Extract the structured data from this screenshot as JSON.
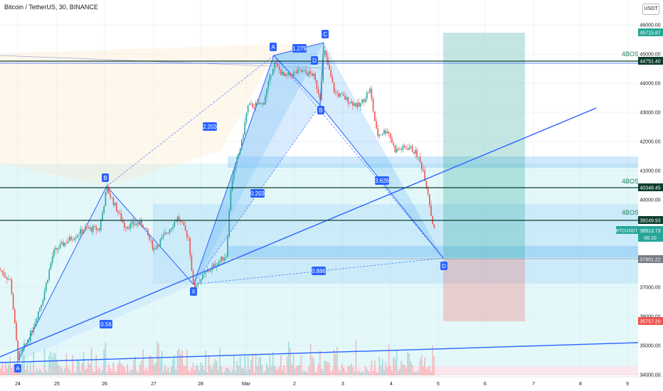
{
  "header": {
    "title": "Bitcoin / TetherUS, 30, BINANCE",
    "currency": "USDT"
  },
  "price_axis": {
    "ticks": [
      "46000.00",
      "45000.00",
      "44000.00",
      "43000.00",
      "42000.00",
      "41000.00",
      "40000.00",
      "39000.00",
      "38000.00",
      "37000.00",
      "36000.00",
      "35000.00",
      "34000.00"
    ],
    "labels": {
      "target": "45715.87",
      "bos_top": "44751.40",
      "bos_mid": "40348.45",
      "bos_low": "39249.93",
      "symbol": "BTCUSDT",
      "last": "38913.73",
      "countdown": "06:10",
      "entry": "37901.22",
      "stop": "35757.20"
    }
  },
  "time_axis": {
    "ticks": [
      "24",
      "25",
      "26",
      "27",
      "28",
      "Mar",
      "2",
      "3",
      "4",
      "5",
      "6",
      "7",
      "8",
      "9"
    ]
  },
  "drawings": {
    "bos_label": "4BOS",
    "pattern1_points": [
      "A",
      "B",
      "X"
    ],
    "pattern1_ratios": [
      "2.203",
      "0.203",
      "0.56"
    ],
    "pattern2_points": [
      "A",
      "C",
      "D",
      "B",
      "D"
    ],
    "pattern2_ratios": [
      "1.279",
      "3.626",
      "0.886"
    ]
  },
  "colors": {
    "up": "#26a69a",
    "down": "#ef5350",
    "trend_line": "#2962ff",
    "bos_line": "#0b3d2e",
    "zone_blue": "#2196f3",
    "profit": "#26a69a",
    "loss": "#ef5350"
  }
}
